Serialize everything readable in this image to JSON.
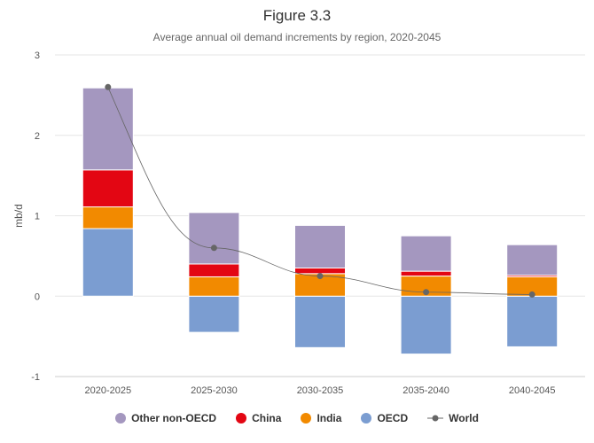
{
  "chart_data": {
    "type": "bar",
    "title": "Figure 3.3",
    "subtitle": "Average annual oil demand increments by region, 2020-2045",
    "ylabel": "mb/d",
    "xlabel": "",
    "ylim": [
      -1,
      3
    ],
    "yticks": [
      -1,
      0,
      1,
      2,
      3
    ],
    "categories": [
      "2020-2025",
      "2025-2030",
      "2030-2035",
      "2035-2040",
      "2040-2045"
    ],
    "series": [
      {
        "name": "OECD",
        "color": "#7b9dd1",
        "values": [
          0.84,
          -0.45,
          -0.64,
          -0.72,
          -0.63
        ]
      },
      {
        "name": "India",
        "color": "#f28a00",
        "values": [
          0.27,
          0.24,
          0.28,
          0.25,
          0.24
        ]
      },
      {
        "name": "China",
        "color": "#e30613",
        "values": [
          0.46,
          0.16,
          0.07,
          0.06,
          0.02
        ]
      },
      {
        "name": "Other non-OECD",
        "color": "#a497bf",
        "values": [
          1.02,
          0.64,
          0.53,
          0.44,
          0.38
        ]
      }
    ],
    "line": {
      "name": "World",
      "color": "#666666",
      "values": [
        2.6,
        0.6,
        0.25,
        0.05,
        0.02
      ]
    },
    "legend_order": [
      "Other non-OECD",
      "China",
      "India",
      "OECD",
      "World"
    ],
    "grid": true,
    "legend_placement": "bottom"
  }
}
